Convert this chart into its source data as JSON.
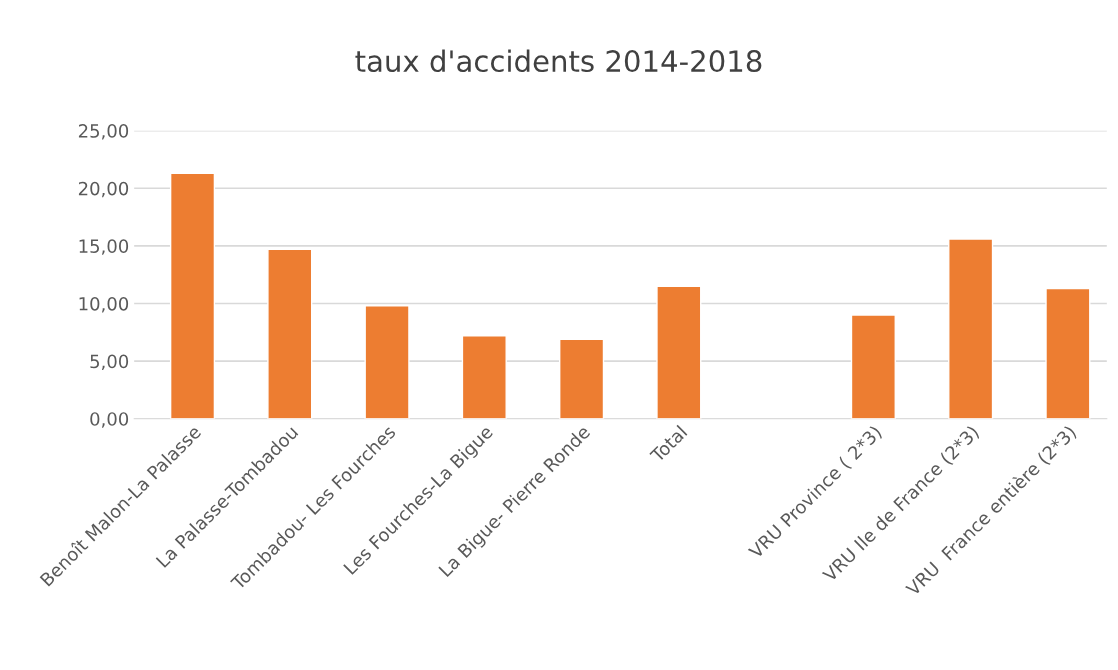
{
  "chart_data": {
    "type": "bar",
    "title": "taux d'accidents 2014-2018",
    "categories": [
      "Benoît Malon-La Palasse",
      "La Palasse-Tombadou",
      "Tombadou- Les Fourches",
      "Les Fourches-La Bigue",
      "La Bigue- Pierre Ronde",
      "Total",
      null,
      "VRU Province ( 2*3)",
      "VRU Ile de France (2*3)",
      "VRU  France entière (2*3)"
    ],
    "values": [
      21.3,
      14.7,
      9.8,
      7.2,
      6.9,
      11.5,
      null,
      9.0,
      15.6,
      11.3
    ],
    "color": "#ed7d31",
    "ylim": [
      0,
      25
    ],
    "yticks": [
      {
        "value": 0,
        "label": "0,00"
      },
      {
        "value": 5,
        "label": "5,00"
      },
      {
        "value": 10,
        "label": "10,00"
      },
      {
        "value": 15,
        "label": "15,00"
      },
      {
        "value": 20,
        "label": "20,00"
      },
      {
        "value": 25,
        "label": "25,00"
      }
    ],
    "grid": "y",
    "legend": false
  }
}
